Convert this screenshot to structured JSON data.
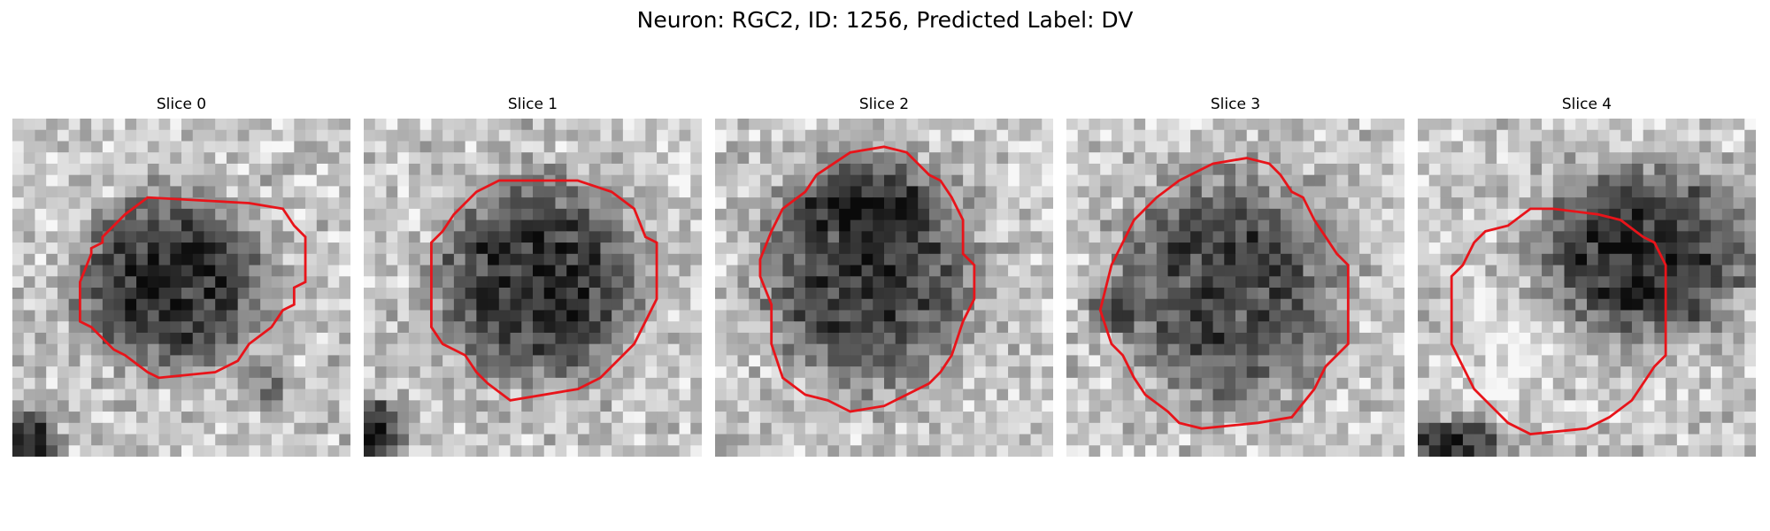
{
  "figure": {
    "title": "Neuron: RGC2, ID: 1256, Predicted Label: DV",
    "outline_color": "#e8141a",
    "colormap": "grayscale"
  },
  "panels": [
    {
      "title": "Slice 0",
      "image_description": "grayscale microscopy crop with a dark roughly circular cell body centered slightly left, bright speckled surround, dark shading at bottom-left corner",
      "contour": [
        [
          21,
          7.5
        ],
        [
          24,
          8
        ],
        [
          25,
          9.5
        ],
        [
          26,
          10.5
        ],
        [
          26,
          14.5
        ],
        [
          25,
          15
        ],
        [
          25,
          16.5
        ],
        [
          24,
          17
        ],
        [
          23,
          18.5
        ],
        [
          21,
          20
        ],
        [
          20,
          21.5
        ],
        [
          18,
          22.5
        ],
        [
          13,
          23
        ],
        [
          12,
          22.5
        ],
        [
          10,
          21
        ],
        [
          9,
          20.5
        ],
        [
          8,
          19.5
        ],
        [
          7,
          18.5
        ],
        [
          6,
          18
        ],
        [
          6,
          17.5
        ],
        [
          6,
          14.5
        ],
        [
          7,
          12
        ],
        [
          7,
          11.5
        ],
        [
          8,
          11
        ],
        [
          8,
          10.5
        ],
        [
          9,
          9.5
        ],
        [
          10,
          8.5
        ],
        [
          12,
          7
        ]
      ]
    },
    {
      "title": "Slice 1",
      "image_description": "grayscale microscopy crop with a large dark granular cell body filling the center, light speckled background, dark patch at lower-left",
      "contour": [
        [
          19,
          5.5
        ],
        [
          22,
          6.5
        ],
        [
          24,
          8
        ],
        [
          25,
          10.5
        ],
        [
          26,
          11
        ],
        [
          26,
          16
        ],
        [
          25,
          18
        ],
        [
          24,
          20
        ],
        [
          23,
          21
        ],
        [
          22,
          22
        ],
        [
          21,
          23
        ],
        [
          19,
          24
        ],
        [
          13,
          25
        ],
        [
          11,
          23.5
        ],
        [
          10,
          22.5
        ],
        [
          9,
          21
        ],
        [
          7,
          20
        ],
        [
          6,
          18.5
        ],
        [
          6,
          15
        ],
        [
          6,
          11
        ],
        [
          7,
          10
        ],
        [
          8,
          8.5
        ],
        [
          10,
          6.5
        ],
        [
          11,
          6
        ],
        [
          12,
          5.5
        ]
      ]
    },
    {
      "title": "Slice 2",
      "image_description": "grayscale microscopy crop with a very large dark cell body occupying most of the frame, darkest toward the upper region, lighter edges",
      "contour": [
        [
          15,
          2.5
        ],
        [
          17,
          3
        ],
        [
          18,
          4
        ],
        [
          19,
          5
        ],
        [
          20,
          5.5
        ],
        [
          21,
          7
        ],
        [
          22,
          9
        ],
        [
          22,
          12
        ],
        [
          23,
          13
        ],
        [
          23,
          16
        ],
        [
          22,
          18
        ],
        [
          21,
          21
        ],
        [
          20,
          22.5
        ],
        [
          19,
          23.5
        ],
        [
          17,
          24.5
        ],
        [
          15,
          25.5
        ],
        [
          12,
          26
        ],
        [
          10,
          25
        ],
        [
          8,
          24.5
        ],
        [
          6,
          23
        ],
        [
          5,
          20
        ],
        [
          5,
          16.5
        ],
        [
          4,
          14
        ],
        [
          4,
          12.5
        ],
        [
          5,
          10
        ],
        [
          6,
          8
        ],
        [
          8,
          6.5
        ],
        [
          9,
          5
        ],
        [
          12,
          3
        ]
      ]
    },
    {
      "title": "Slice 3",
      "image_description": "grayscale microscopy crop with a dark speckled cell body in the center, very dark spots at mid-left, light noisy background",
      "contour": [
        [
          16,
          3.5
        ],
        [
          18,
          4
        ],
        [
          19,
          5
        ],
        [
          20,
          6.5
        ],
        [
          21,
          7
        ],
        [
          22,
          9
        ],
        [
          23,
          10.5
        ],
        [
          24,
          12
        ],
        [
          25,
          13
        ],
        [
          25,
          20
        ],
        [
          24,
          21
        ],
        [
          23,
          22
        ],
        [
          22,
          24
        ],
        [
          20,
          26.5
        ],
        [
          17,
          27
        ],
        [
          12,
          27.5
        ],
        [
          10,
          27
        ],
        [
          9,
          26
        ],
        [
          7,
          24.5
        ],
        [
          6,
          23
        ],
        [
          5,
          21
        ],
        [
          4,
          20
        ],
        [
          3,
          17
        ],
        [
          4,
          13
        ],
        [
          5,
          11
        ],
        [
          6,
          9
        ],
        [
          8,
          7
        ],
        [
          10,
          5.5
        ],
        [
          12,
          4.5
        ],
        [
          13,
          4
        ]
      ]
    },
    {
      "title": "Slice 4",
      "image_description": "grayscale microscopy crop with a dark cell body in the upper-right region, bright area in the lower-left, dark shadow at bottom-left corner",
      "contour": [
        [
          16,
          8.5
        ],
        [
          18,
          9
        ],
        [
          20,
          10.5
        ],
        [
          21,
          11
        ],
        [
          22,
          13
        ],
        [
          22,
          21
        ],
        [
          21,
          22
        ],
        [
          20,
          23.5
        ],
        [
          19,
          25
        ],
        [
          17,
          26.5
        ],
        [
          15,
          27.5
        ],
        [
          10,
          28
        ],
        [
          8,
          27
        ],
        [
          7,
          26
        ],
        [
          5,
          24
        ],
        [
          4,
          22
        ],
        [
          3,
          20
        ],
        [
          3,
          14
        ],
        [
          4,
          13
        ],
        [
          5,
          11
        ],
        [
          6,
          10
        ],
        [
          8,
          9.5
        ],
        [
          10,
          8
        ],
        [
          12,
          8
        ]
      ]
    }
  ]
}
